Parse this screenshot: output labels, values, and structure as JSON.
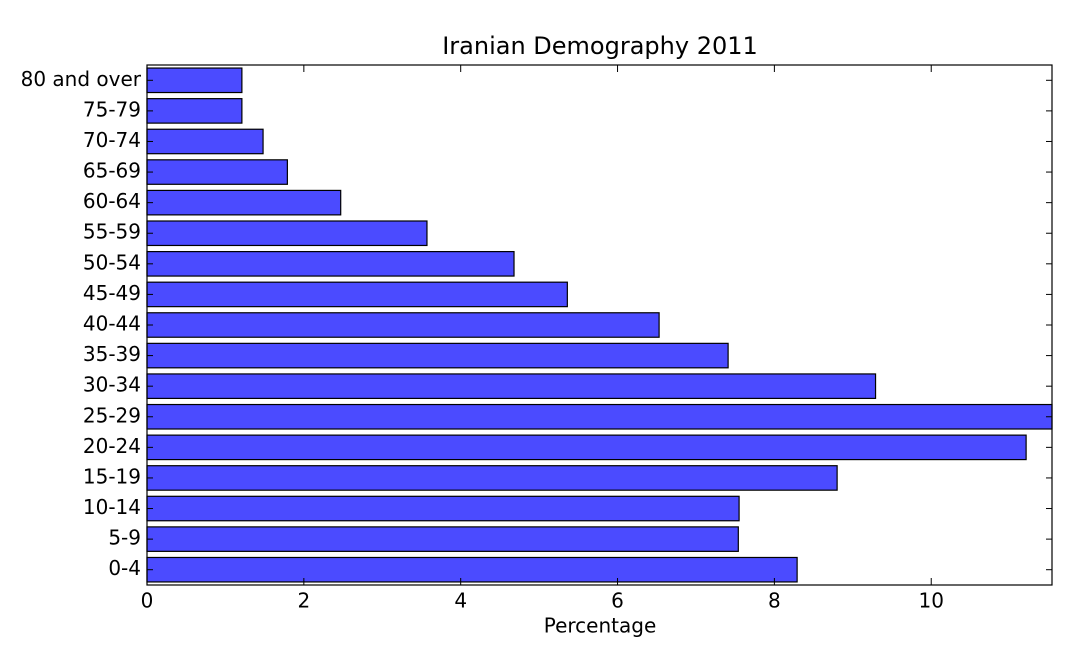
{
  "chart_data": {
    "type": "barh",
    "title": "Iranian Demography 2011",
    "xlabel": "Percentage",
    "categories": [
      "0-4",
      "5-9",
      "10-14",
      "15-19",
      "20-24",
      "25-29",
      "30-34",
      "35-39",
      "40-44",
      "45-49",
      "50-54",
      "55-59",
      "60-64",
      "65-69",
      "70-74",
      "75-79",
      "80 and over"
    ],
    "values": [
      8.29,
      7.54,
      7.55,
      8.8,
      11.21,
      11.54,
      9.29,
      7.41,
      6.53,
      5.36,
      4.68,
      3.57,
      2.47,
      1.79,
      1.48,
      1.21,
      1.21
    ],
    "color": "#4b4bff",
    "xlim": [
      0,
      11.54
    ],
    "xticks": [
      0,
      2,
      4,
      6,
      8,
      10
    ]
  }
}
